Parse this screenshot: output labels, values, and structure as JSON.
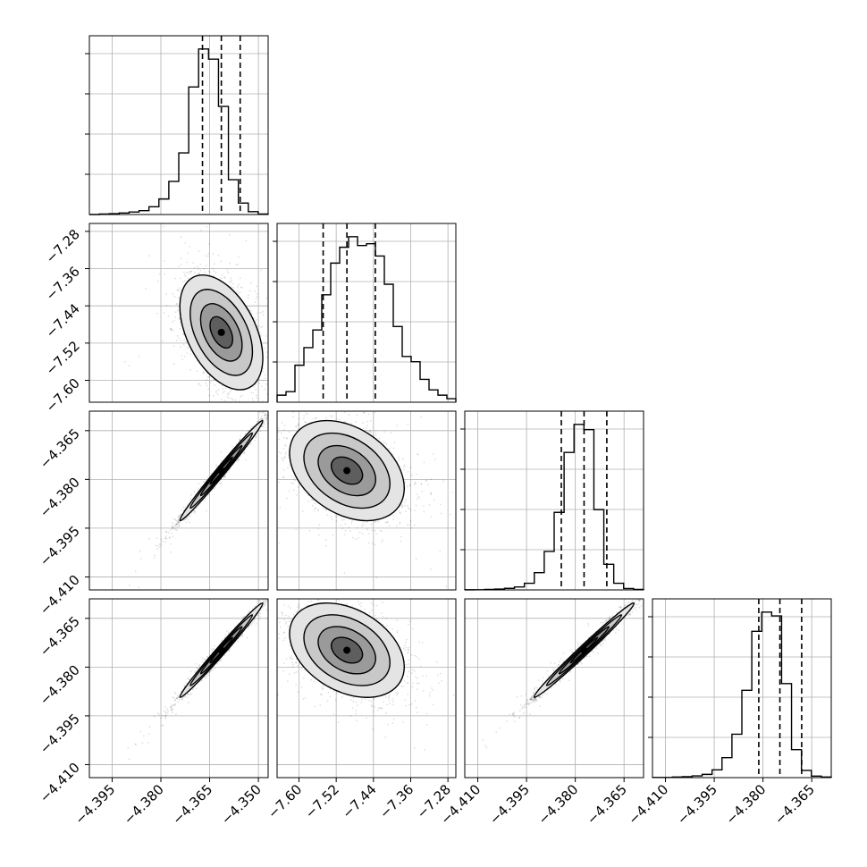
{
  "chart_data": {
    "type": "corner",
    "parameters": 4,
    "axes": [
      {
        "range": [
          -4.402,
          -4.347
        ],
        "ticks": [
          "-4.395",
          "-4.380",
          "-4.365",
          "-4.350"
        ],
        "tick_values": [
          -4.395,
          -4.38,
          -4.365,
          -4.35
        ]
      },
      {
        "range": [
          -7.647,
          -7.263
        ],
        "ticks": [
          "-7.60",
          "-7.52",
          "-7.44",
          "-7.36",
          "-7.28"
        ],
        "tick_values": [
          -7.6,
          -7.52,
          -7.44,
          -7.36,
          -7.28
        ]
      },
      {
        "range": [
          -4.414,
          -4.359
        ],
        "ticks": [
          "-4.410",
          "-4.395",
          "-4.380",
          "-4.365"
        ],
        "tick_values": [
          -4.41,
          -4.395,
          -4.38,
          -4.365
        ]
      },
      {
        "range": [
          -4.414,
          -4.359
        ],
        "ticks": [
          "-4.410",
          "-4.395",
          "-4.380",
          "-4.365"
        ],
        "tick_values": [
          -4.41,
          -4.395,
          -4.38,
          -4.365
        ]
      }
    ],
    "quantiles": [
      [
        -4.3672,
        -4.3614,
        -4.3556
      ],
      [
        -7.548,
        -7.497,
        -7.436
      ],
      [
        -4.3843,
        -4.3773,
        -4.3703
      ],
      [
        -4.3813,
        -4.3748,
        -4.3681
      ]
    ],
    "histograms": [
      [
        0,
        0.3,
        0.5,
        0.9,
        1.5,
        2.3,
        4.6,
        9.2,
        19.6,
        36.5,
        75.5,
        98,
        92,
        64,
        20.6,
        6.8,
        1.7,
        0.3
      ],
      [
        0.04,
        0.06,
        0.21,
        0.31,
        0.41,
        0.61,
        0.79,
        0.88,
        0.94,
        0.89,
        0.9,
        0.83,
        0.67,
        0.43,
        0.26,
        0.23,
        0.13,
        0.07,
        0.04,
        0.02
      ],
      [
        0.07,
        0.1,
        0.3,
        0.5,
        0.9,
        1.7,
        3.8,
        9.9,
        22.1,
        44.5,
        78.9,
        95,
        92,
        46.1,
        14.7,
        3.8,
        0.8,
        0.3
      ],
      [
        0.08,
        0.1,
        0.3,
        0.5,
        0.9,
        1.7,
        4.1,
        10.5,
        22.8,
        45.9,
        76.9,
        87,
        85,
        49.4,
        14.7,
        3.8,
        0.8,
        0.3
      ]
    ],
    "correlations": {
      "1-0": -0.45,
      "2-0": 0.99,
      "2-1": -0.35,
      "3-0": 0.99,
      "3-1": -0.35,
      "3-2": 0.99
    },
    "grid": true
  }
}
